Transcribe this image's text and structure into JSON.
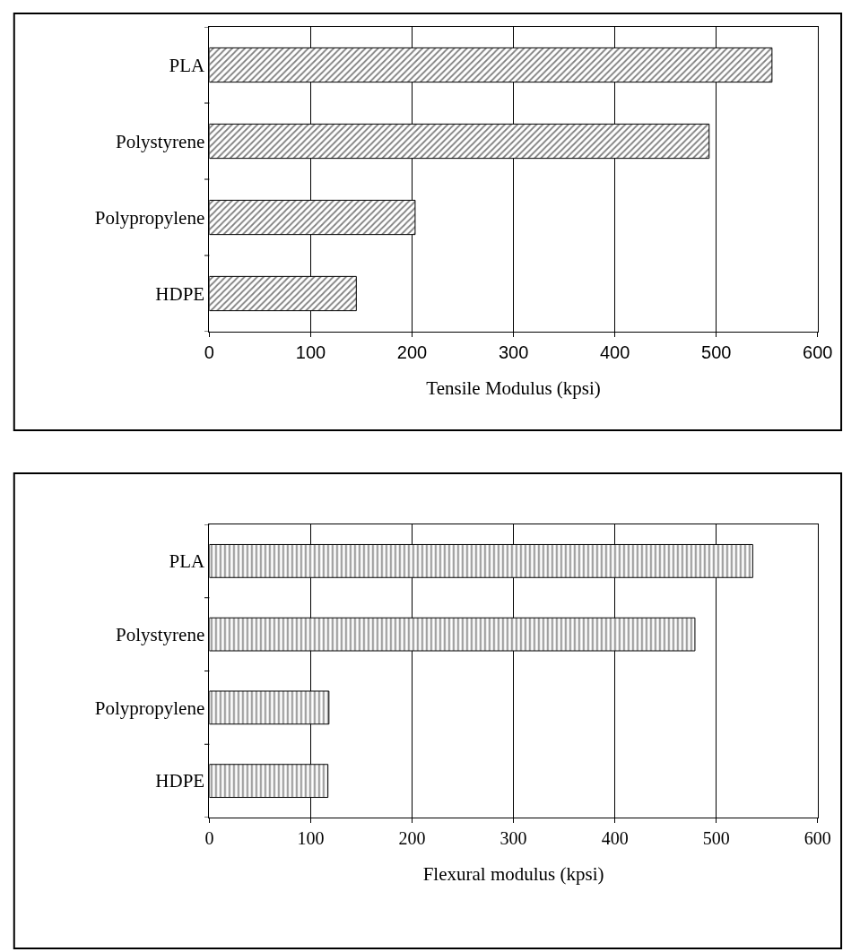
{
  "chart_data": [
    {
      "type": "bar",
      "orientation": "horizontal",
      "categories": [
        "PLA",
        "Polystyrene",
        "Polypropylene",
        "HDPE"
      ],
      "values": [
        555,
        493,
        203,
        145
      ],
      "color": "#000000",
      "xlabel": "Tensile Modulus (kpsi)",
      "xlim": [
        0,
        600
      ],
      "xticks": [
        0,
        100,
        200,
        300,
        400,
        500,
        600
      ],
      "grid": "x"
    },
    {
      "type": "bar",
      "orientation": "horizontal",
      "categories": [
        "PLA",
        "Polystyrene",
        "Polypropylene",
        "HDPE"
      ],
      "values": [
        536,
        479,
        118,
        117
      ],
      "color": "#000000",
      "xlabel": "Flexural modulus (kpsi)",
      "xlim": [
        0,
        600
      ],
      "xticks": [
        0,
        100,
        200,
        300,
        400,
        500,
        600
      ],
      "grid": "x"
    }
  ]
}
